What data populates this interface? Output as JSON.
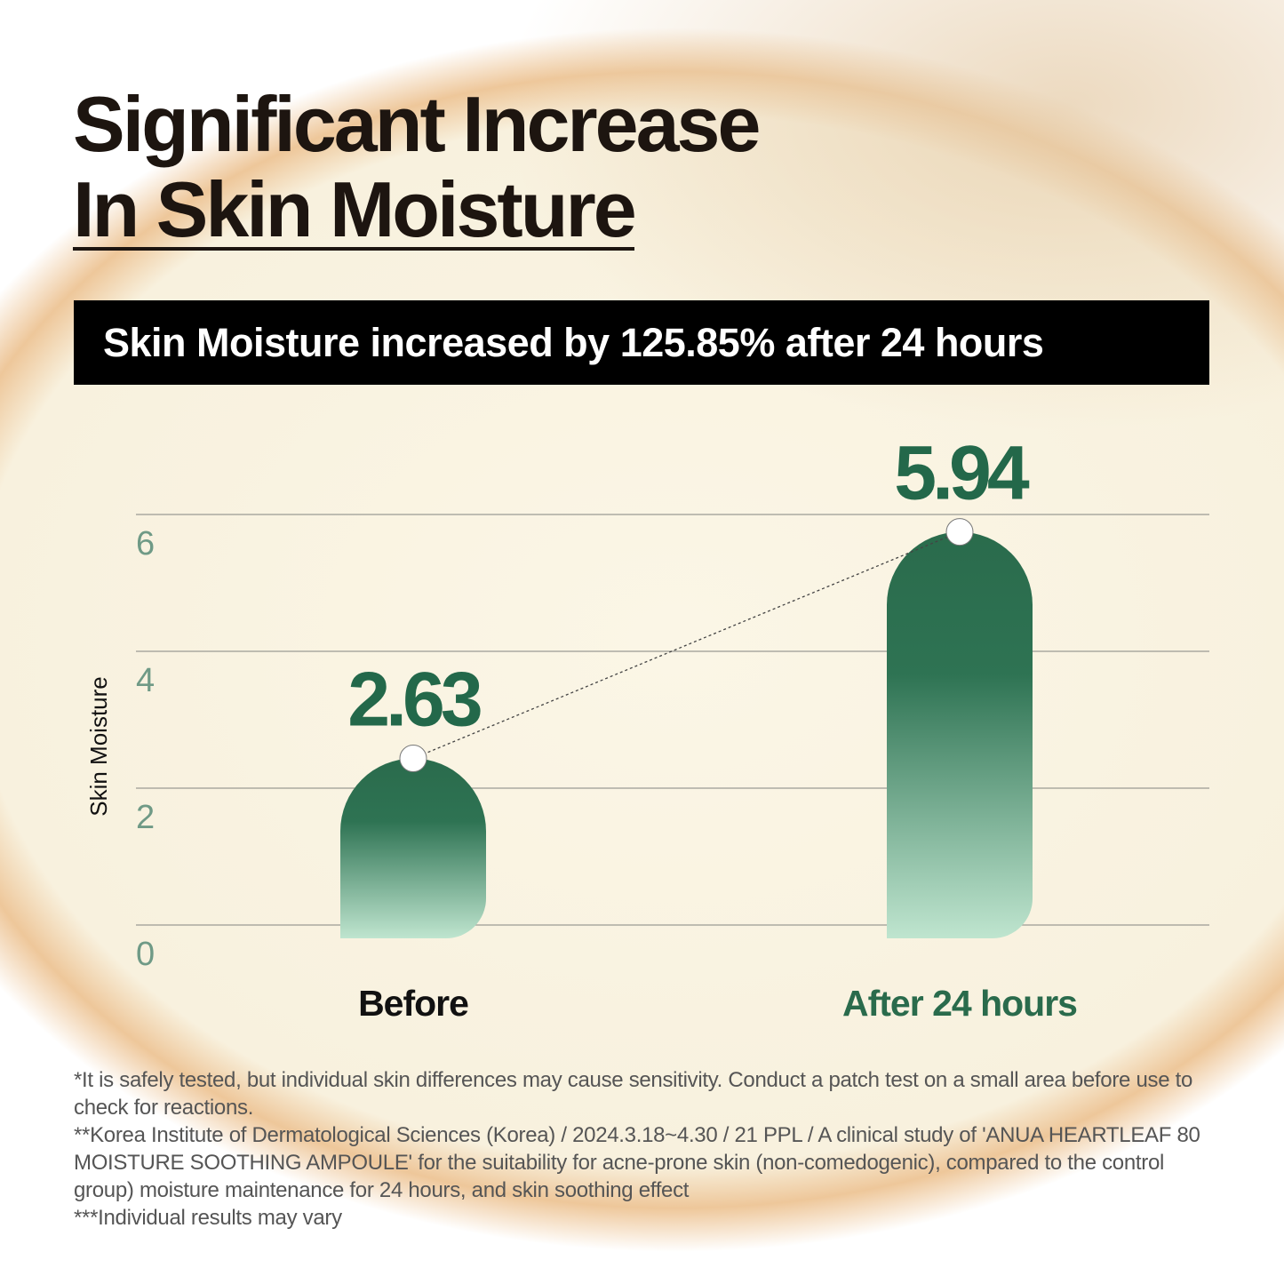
{
  "title": {
    "line1": "Significant Increase",
    "line2": "In Skin Moisture"
  },
  "banner": "Skin Moisture increased by 125.85% after 24 hours",
  "chart_data": {
    "type": "bar",
    "categories": [
      "Before",
      "After 24 hours"
    ],
    "values": [
      2.63,
      5.94
    ],
    "value_labels": [
      "2.63",
      "5.94"
    ],
    "ylabel": "Skin Moisture",
    "ylim": [
      0,
      6
    ],
    "yticks": [
      "0",
      "2",
      "4",
      "6"
    ],
    "grid": true,
    "connector": "dotted line between bar tops",
    "colors": {
      "bar_top": "#2a6b4c",
      "bar_bottom": "#b6e0c8",
      "value_label": "#23684a",
      "tick_label": "#6f9a86",
      "after_label": "#2a6b4c",
      "before_label": "#111111"
    }
  },
  "footnotes": [
    "*It is safely tested, but individual skin differences may cause sensitivity. Conduct a patch test on a small area before use to check for reactions.",
    "**Korea Institute of Dermatological Sciences (Korea) / 2024.3.18~4.30 / 21 PPL / A clinical study of 'ANUA HEARTLEAF 80 MOISTURE SOOTHING AMPOULE' for the suitability for acne-prone skin (non-comedogenic), compared to the control group) moisture maintenance for 24 hours, and skin soothing effect",
    "***Individual results may vary"
  ]
}
